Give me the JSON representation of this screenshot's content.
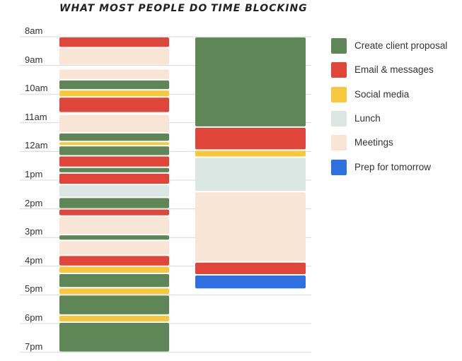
{
  "titles": {
    "left": "WHAT MOST PEOPLE DO",
    "right": "TIME BLOCKING"
  },
  "hours": [
    "8am",
    "9am",
    "10am",
    "11am",
    "12am",
    "1pm",
    "2pm",
    "3pm",
    "4pm",
    "5pm",
    "6pm",
    "7pm"
  ],
  "legend": [
    {
      "key": "proposal",
      "label": "Create client proposal",
      "color": "#5f8656"
    },
    {
      "key": "email",
      "label": "Email & messages",
      "color": "#e0453a"
    },
    {
      "key": "social",
      "label": "Social media",
      "color": "#f7c83e"
    },
    {
      "key": "lunch",
      "label": "Lunch",
      "color": "#dbe7e2"
    },
    {
      "key": "meetings",
      "label": "Meetings",
      "color": "#f8e5d6"
    },
    {
      "key": "prep",
      "label": "Prep for tomorrow",
      "color": "#2f6fe0"
    }
  ],
  "schedules": {
    "most_people": [
      {
        "start": 8.0,
        "end": 8.38,
        "type": "email"
      },
      {
        "start": 8.38,
        "end": 9.0,
        "type": "meetings"
      },
      {
        "start": 9.12,
        "end": 9.5,
        "type": "meetings"
      },
      {
        "start": 9.5,
        "end": 9.85,
        "type": "proposal"
      },
      {
        "start": 9.85,
        "end": 10.1,
        "type": "social"
      },
      {
        "start": 10.1,
        "end": 10.65,
        "type": "email"
      },
      {
        "start": 10.7,
        "end": 11.35,
        "type": "meetings"
      },
      {
        "start": 11.35,
        "end": 11.65,
        "type": "proposal"
      },
      {
        "start": 11.65,
        "end": 11.8,
        "type": "social"
      },
      {
        "start": 11.8,
        "end": 12.15,
        "type": "proposal"
      },
      {
        "start": 12.15,
        "end": 12.55,
        "type": "email"
      },
      {
        "start": 12.55,
        "end": 12.75,
        "type": "proposal"
      },
      {
        "start": 12.75,
        "end": 13.15,
        "type": "email"
      },
      {
        "start": 13.15,
        "end": 13.6,
        "type": "lunch"
      },
      {
        "start": 13.6,
        "end": 14.0,
        "type": "proposal"
      },
      {
        "start": 14.0,
        "end": 14.25,
        "type": "email"
      },
      {
        "start": 14.25,
        "end": 14.9,
        "type": "meetings"
      },
      {
        "start": 14.9,
        "end": 15.1,
        "type": "proposal"
      },
      {
        "start": 15.1,
        "end": 15.62,
        "type": "meetings"
      },
      {
        "start": 15.62,
        "end": 16.0,
        "type": "email"
      },
      {
        "start": 16.0,
        "end": 16.25,
        "type": "social"
      },
      {
        "start": 16.25,
        "end": 16.75,
        "type": "proposal"
      },
      {
        "start": 16.75,
        "end": 17.0,
        "type": "social"
      },
      {
        "start": 17.0,
        "end": 17.7,
        "type": "proposal"
      },
      {
        "start": 17.7,
        "end": 17.95,
        "type": "social"
      },
      {
        "start": 17.95,
        "end": 19.0,
        "type": "proposal"
      }
    ],
    "time_blocking": [
      {
        "start": 8.0,
        "end": 11.15,
        "type": "proposal"
      },
      {
        "start": 11.15,
        "end": 11.95,
        "type": "email"
      },
      {
        "start": 11.95,
        "end": 12.2,
        "type": "social"
      },
      {
        "start": 12.2,
        "end": 13.4,
        "type": "lunch"
      },
      {
        "start": 13.4,
        "end": 15.85,
        "type": "meetings"
      },
      {
        "start": 15.85,
        "end": 16.3,
        "type": "email"
      },
      {
        "start": 16.3,
        "end": 16.8,
        "type": "prep"
      }
    ]
  }
}
